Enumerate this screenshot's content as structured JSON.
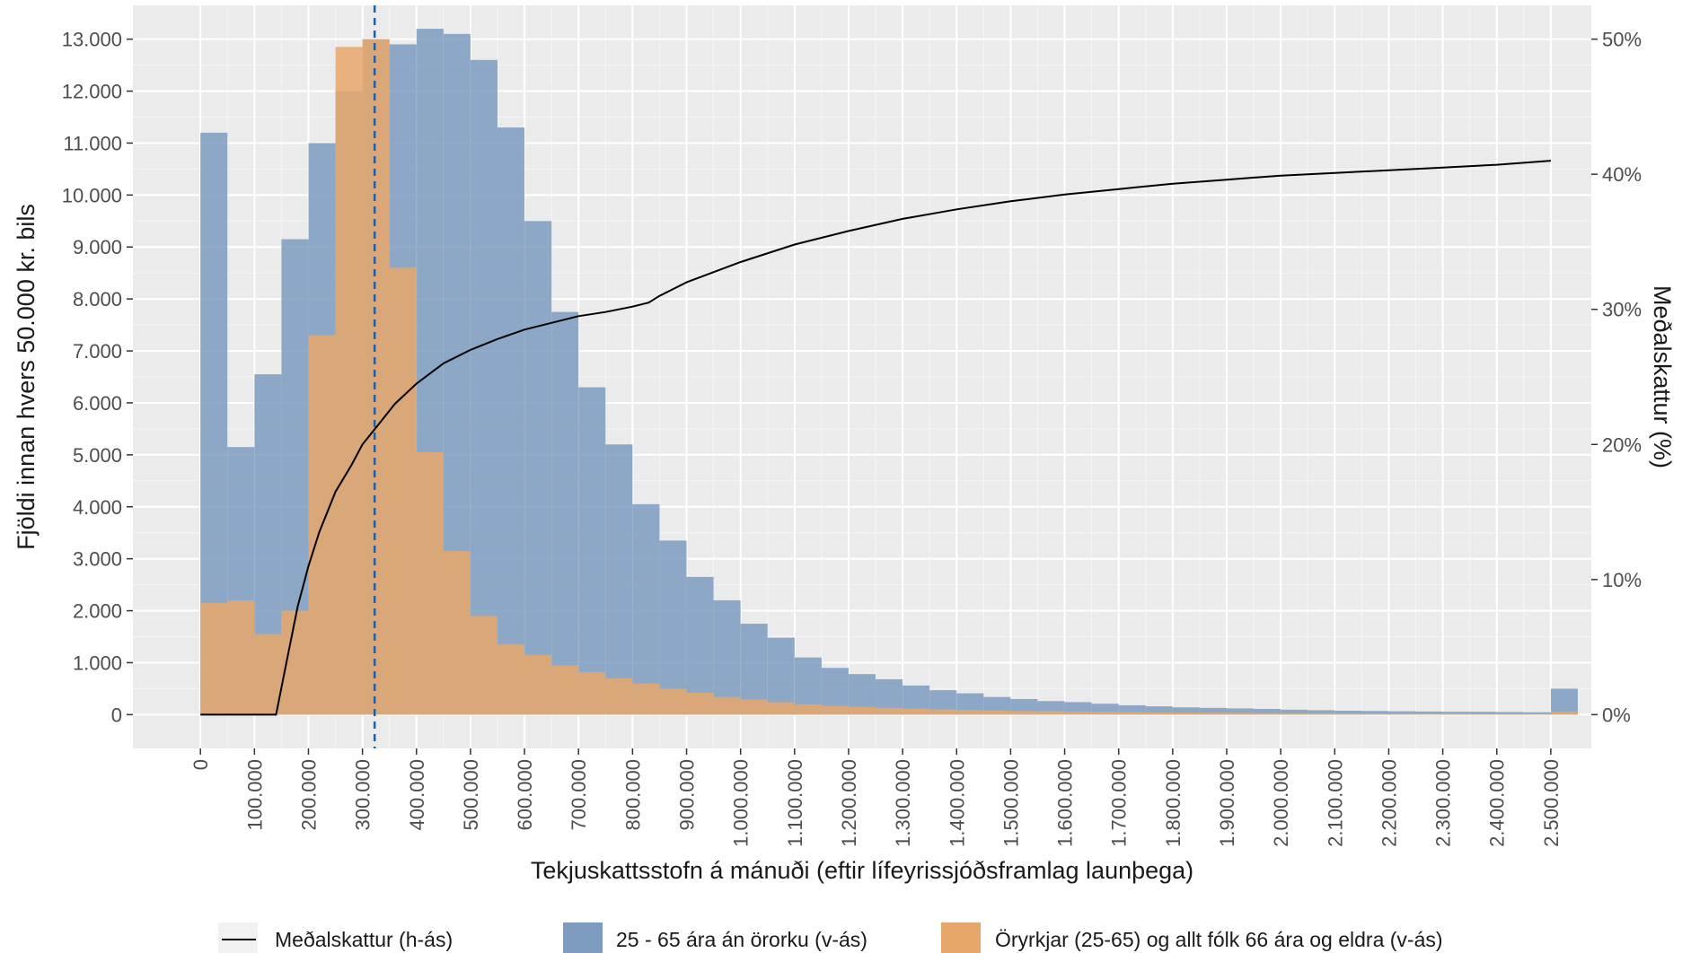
{
  "chart_data": {
    "type": "bar",
    "title": "",
    "xlabel": "Tekjuskattsstofn á mánuði (eftir lífeyrissjóðsframlag launþega)",
    "ylabel": "Fjöldi innan hvers 50.000 kr. bils",
    "y2label": "Meðalskattur (%)",
    "bin_width": 50000,
    "xlim": [
      -125000,
      2575000
    ],
    "ylim": [
      -650,
      13650
    ],
    "y2lim": [
      -2.5,
      52.5
    ],
    "x_ticks": [
      0,
      100000,
      200000,
      300000,
      400000,
      500000,
      600000,
      700000,
      800000,
      900000,
      1000000,
      1100000,
      1200000,
      1300000,
      1400000,
      1500000,
      1600000,
      1700000,
      1800000,
      1900000,
      2000000,
      2100000,
      2200000,
      2300000,
      2400000,
      2500000
    ],
    "x_tick_labels": [
      "0",
      "100.000",
      "200.000",
      "300.000",
      "400.000",
      "500.000",
      "600.000",
      "700.000",
      "800.000",
      "900.000",
      "1.000.000",
      "1.100.000",
      "1.200.000",
      "1.300.000",
      "1.400.000",
      "1.500.000",
      "1.600.000",
      "1.700.000",
      "1.800.000",
      "1.900.000",
      "2.000.000",
      "2.100.000",
      "2.200.000",
      "2.300.000",
      "2.400.000",
      "2.500.000"
    ],
    "y_ticks": [
      0,
      1000,
      2000,
      3000,
      4000,
      5000,
      6000,
      7000,
      8000,
      9000,
      10000,
      11000,
      12000,
      13000
    ],
    "y_tick_labels": [
      "0",
      "1.000",
      "2.000",
      "3.000",
      "4.000",
      "5.000",
      "6.000",
      "7.000",
      "8.000",
      "9.000",
      "10.000",
      "11.000",
      "12.000",
      "13.000"
    ],
    "y2_ticks": [
      0,
      10,
      20,
      30,
      40,
      50
    ],
    "y2_tick_labels": [
      "0%",
      "10%",
      "20%",
      "30%",
      "40%",
      "50%"
    ],
    "grid": true,
    "legend_position": "bottom",
    "bin_starts": [
      0,
      50000,
      100000,
      150000,
      200000,
      250000,
      300000,
      350000,
      400000,
      450000,
      500000,
      550000,
      600000,
      650000,
      700000,
      750000,
      800000,
      850000,
      900000,
      950000,
      1000000,
      1050000,
      1100000,
      1150000,
      1200000,
      1250000,
      1300000,
      1350000,
      1400000,
      1450000,
      1500000,
      1550000,
      1600000,
      1650000,
      1700000,
      1750000,
      1800000,
      1850000,
      1900000,
      1950000,
      2000000,
      2050000,
      2100000,
      2150000,
      2200000,
      2250000,
      2300000,
      2350000,
      2400000,
      2450000,
      2500000
    ],
    "series": [
      {
        "name": "25 - 65 ára án örorku (v-ás)",
        "color": "#7d9cc0",
        "values": [
          11200,
          5150,
          6550,
          9150,
          11000,
          12000,
          13000,
          12900,
          13200,
          13100,
          12600,
          11300,
          9500,
          7750,
          6300,
          5200,
          4050,
          3350,
          2650,
          2200,
          1750,
          1480,
          1100,
          900,
          780,
          680,
          560,
          470,
          410,
          340,
          300,
          260,
          240,
          210,
          180,
          160,
          140,
          130,
          120,
          110,
          95,
          85,
          75,
          70,
          65,
          60,
          55,
          55,
          50,
          45,
          500
        ]
      },
      {
        "name": "Öryrkjar (25-65) og allt fólk 66 ára og eldra (v-ás)",
        "color": "#e8a76a",
        "values": [
          2150,
          2200,
          1550,
          2000,
          7300,
          12850,
          13000,
          8600,
          5050,
          3150,
          1900,
          1350,
          1150,
          950,
          820,
          700,
          600,
          500,
          420,
          340,
          290,
          240,
          200,
          170,
          150,
          130,
          115,
          100,
          90,
          80,
          70,
          65,
          60,
          55,
          50,
          45,
          40,
          38,
          35,
          32,
          30,
          28,
          26,
          24,
          22,
          20,
          20,
          18,
          17,
          15,
          60
        ]
      }
    ],
    "line": {
      "name": "Meðalskattur (h-ás)",
      "axis": "right",
      "color": "#000000",
      "x": [
        0,
        140000,
        160000,
        180000,
        200000,
        220000,
        250000,
        280000,
        300000,
        330000,
        360000,
        400000,
        450000,
        500000,
        550000,
        600000,
        650000,
        700000,
        750000,
        800000,
        830000,
        850000,
        900000,
        1000000,
        1100000,
        1200000,
        1300000,
        1400000,
        1500000,
        1600000,
        1700000,
        1800000,
        1900000,
        2000000,
        2100000,
        2200000,
        2300000,
        2400000,
        2500000
      ],
      "y": [
        0,
        0,
        4,
        8,
        11,
        13.5,
        16.5,
        18.5,
        20,
        21.5,
        23,
        24.5,
        26,
        27,
        27.8,
        28.5,
        29,
        29.5,
        29.8,
        30.2,
        30.5,
        31,
        32,
        33.5,
        34.8,
        35.8,
        36.7,
        37.4,
        38,
        38.5,
        38.9,
        39.3,
        39.6,
        39.9,
        40.1,
        40.3,
        40.5,
        40.7,
        41
      ]
    },
    "vline": {
      "x": 322500,
      "color": "#1a5fa8",
      "style": "dashed"
    }
  }
}
